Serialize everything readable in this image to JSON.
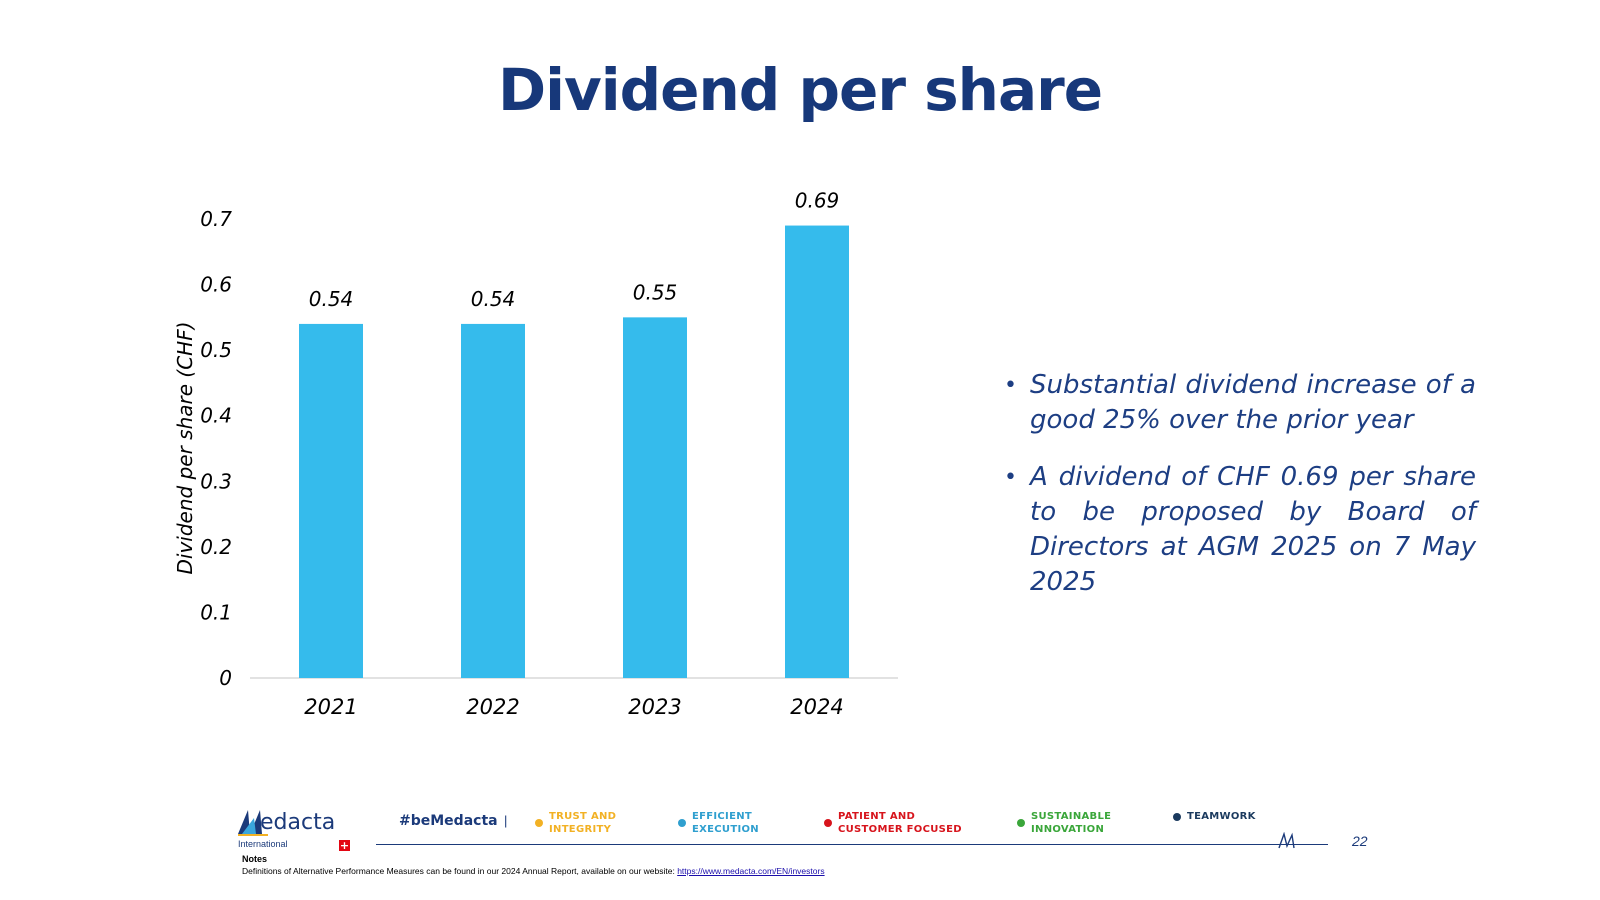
{
  "slide": {
    "title": "Dividend per share",
    "page_number": "22"
  },
  "chart_data": {
    "type": "bar",
    "title": "",
    "xlabel": "",
    "ylabel": "Dividend per share (CHF)",
    "categories": [
      "2021",
      "2022",
      "2023",
      "2024"
    ],
    "values": [
      0.54,
      0.54,
      0.55,
      0.69
    ],
    "data_labels": [
      "0.54",
      "0.54",
      "0.55",
      "0.69"
    ],
    "ylim": [
      0,
      0.7
    ],
    "yticks": [
      0,
      0.1,
      0.2,
      0.3,
      0.4,
      0.5,
      0.6,
      0.7
    ],
    "ytick_labels": [
      "0",
      "0.1",
      "0.2",
      "0.3",
      "0.4",
      "0.5",
      "0.6",
      "0.7"
    ],
    "grid": false,
    "bar_color": "#35bbec"
  },
  "bullets": [
    "Substantial dividend increase of a good 25% over the prior year",
    "A dividend of CHF 0.69 per share to be proposed by Board of Directors at AGM 2025 on 7 May 2025"
  ],
  "footer": {
    "logo_text": "edacta",
    "logo_sub": "International",
    "hashtag": "#beMedacta",
    "separator": "|",
    "values": [
      {
        "label": "TRUST AND\nINTEGRITY",
        "color": "#f2b124"
      },
      {
        "label": "EFFICIENT\nEXECUTION",
        "color": "#2f9fcf"
      },
      {
        "label": "PATIENT AND\nCUSTOMER FOCUSED",
        "color": "#d7141c"
      },
      {
        "label": "SUSTAINABLE\nINNOVATION",
        "color": "#3aa63a"
      },
      {
        "label": "TEAMWORK",
        "color": "#1b3a5e"
      }
    ],
    "notes_heading": "Notes",
    "notes_text": "Definitions of Alternative Performance Measures can be found in our 2024 Annual Report, available on our website: ",
    "notes_link": "https://www.medacta.com/EN/investors"
  },
  "colors": {
    "title": "#17387a",
    "accent": "#35bbec",
    "text_blue": "#1d3e83"
  }
}
